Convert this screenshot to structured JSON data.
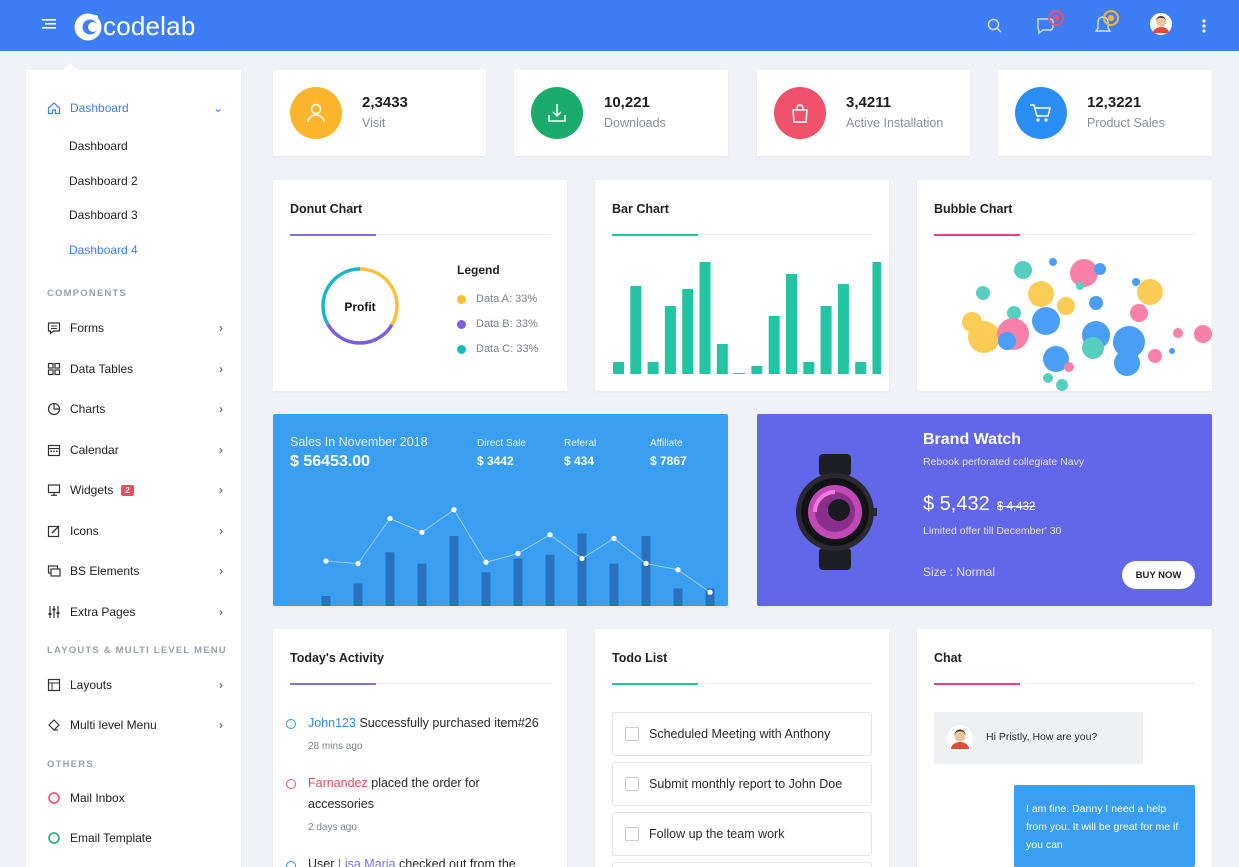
{
  "topbar": {
    "brand": "codelab",
    "accent": "#3d7ef7",
    "menu_icon": "hamburger-icon",
    "actions": [
      "search-icon",
      "chat-icon",
      "bell-icon",
      "avatar",
      "kebab-icon"
    ]
  },
  "sidebar": {
    "dashboard": {
      "label": "Dashboard",
      "sub": [
        "Dashboard",
        "Dashboard 2",
        "Dashboard 3",
        "Dashboard 4"
      ]
    },
    "section_components": "COMPONENTS",
    "components": [
      {
        "label": "Forms",
        "icon": "forms-icon"
      },
      {
        "label": "Data Tables",
        "icon": "data-tables-icon"
      },
      {
        "label": "Charts",
        "icon": "charts-icon"
      },
      {
        "label": "Calendar",
        "icon": "calendar-icon"
      },
      {
        "label": "Widgets",
        "icon": "widgets-icon",
        "badge": "2"
      },
      {
        "label": "Icons",
        "icon": "icons-icon"
      },
      {
        "label": "BS Elements",
        "icon": "bs-elements-icon"
      },
      {
        "label": "Extra Pages",
        "icon": "extra-pages-icon"
      }
    ],
    "section_layouts": "LAYOUTS & MULTI LEVEL MENU",
    "layouts": [
      {
        "label": "Layouts",
        "icon": "layouts-icon"
      },
      {
        "label": "Multi level Menu",
        "icon": "multi-level-menu-icon"
      }
    ],
    "section_others": "OTHERS",
    "others": [
      {
        "label": "Mail Inbox",
        "color": "#ee4b5e"
      },
      {
        "label": "Email Template",
        "color": "#1aa86b"
      }
    ]
  },
  "stats": [
    {
      "value": "2,3433",
      "label": "Visit",
      "color": "#fbb52d",
      "icon": "user-icon"
    },
    {
      "value": "10,221",
      "label": "Downloads",
      "color": "#1aab6d",
      "icon": "download-icon"
    },
    {
      "value": "3,4211",
      "label": "Active Installation",
      "color": "#f0516a",
      "icon": "shopping-bag-icon"
    },
    {
      "value": "12,3221",
      "label": "Product Sales",
      "color": "#2b8ef5",
      "icon": "cart-icon"
    }
  ],
  "donut": {
    "title": "Donut Chart",
    "center": "Profit",
    "legend_title": "Legend",
    "items": [
      {
        "label": "Data A: 33%",
        "color": "#fbbf3a"
      },
      {
        "label": "Data B: 33%",
        "color": "#7b5de0"
      },
      {
        "label": "Data C: 33%",
        "color": "#19b7c4"
      }
    ],
    "accent": "#7b73d9"
  },
  "bar": {
    "title": "Bar Chart",
    "accent": "#22c4a2"
  },
  "bubble": {
    "title": "Bubble Chart",
    "accent": "#ef3d78"
  },
  "sales": {
    "title": "Sales In November 2018",
    "total": "$ 56453.00",
    "cols": [
      {
        "label": "Direct Sale",
        "value": "$ 3442"
      },
      {
        "label": "Referal",
        "value": "$ 434"
      },
      {
        "label": "Affiliate",
        "value": "$ 7867"
      }
    ],
    "bg": "#3a9ff1"
  },
  "brand": {
    "title": "Brand Watch",
    "subtitle": "Rebook perforated collegiate Navy",
    "price": "$ 5,432",
    "old_price": "$ 4,432",
    "offer": "Limited offer till December' 30",
    "size": "Size : Normal",
    "button": "BUY NOW",
    "bg": "#6266e8"
  },
  "activity": {
    "title": "Today's Activity",
    "items": [
      {
        "user": "John123",
        "text": " Successfully purchased item#26",
        "time": "28 mins ago",
        "color": "#2b8ef5"
      },
      {
        "user": "Farnandez",
        "text": " placed the order for accessories",
        "time": "2 days ago",
        "color": "#ee4b5e"
      },
      {
        "prefix": "User ",
        "user": "Lisa Maria",
        "text": " checked out from the"
      }
    ]
  },
  "todo": {
    "title": "Todo List",
    "items": [
      "Scheduled Meeting with Anthony",
      "Submit monthly report to John Doe",
      "Follow up the team work"
    ]
  },
  "chat": {
    "title": "Chat",
    "incoming": "Hi Pristly, How are you?",
    "outgoing": "I am fine. Danny I need a help from you. It will be great for me if you can"
  },
  "chart_data": [
    {
      "type": "pie",
      "title": "Donut Chart",
      "categories": [
        "Data A",
        "Data B",
        "Data C"
      ],
      "values": [
        33,
        33,
        33
      ],
      "center_label": "Profit",
      "legend": "right"
    },
    {
      "type": "bar",
      "title": "Bar Chart",
      "values": [
        12,
        88,
        12,
        68,
        85,
        112,
        30,
        0,
        8,
        58,
        100,
        12,
        68,
        90,
        12,
        112,
        0,
        1
      ]
    },
    {
      "type": "scatter",
      "title": "Bubble Chart"
    },
    {
      "type": "bar",
      "title": "Sales In November 2018",
      "values": [
        8,
        18,
        43,
        34,
        56,
        27,
        38,
        41,
        58,
        34,
        56,
        14,
        14
      ]
    },
    {
      "type": "line",
      "title": "Sales In November 2018",
      "values": [
        36,
        34,
        70,
        59,
        77,
        35,
        42,
        57,
        38,
        54,
        34,
        29,
        11
      ]
    }
  ]
}
